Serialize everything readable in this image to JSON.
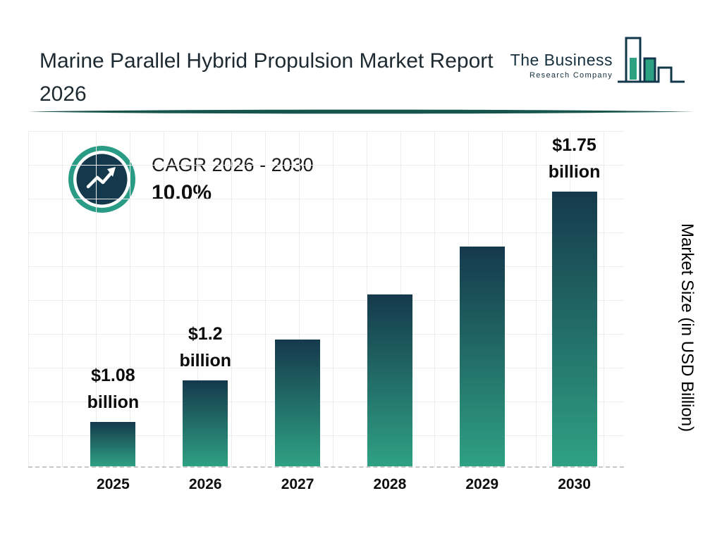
{
  "header": {
    "title": "Marine Parallel Hybrid Propulsion Market Report 2026",
    "logo": {
      "line1": "The Business",
      "line2": "Research Company"
    }
  },
  "cagr": {
    "label": "CAGR 2026 - 2030",
    "value": "10.0%"
  },
  "chart_data": {
    "type": "bar",
    "categories": [
      "2025",
      "2026",
      "2027",
      "2028",
      "2029",
      "2030"
    ],
    "values": [
      1.08,
      1.2,
      1.32,
      1.45,
      1.59,
      1.75
    ],
    "bar_labels": [
      {
        "value": "$1.08",
        "unit": "billion"
      },
      {
        "value": "$1.2",
        "unit": "billion"
      },
      null,
      null,
      null,
      {
        "value": "$1.75",
        "unit": "billion"
      }
    ],
    "title": "",
    "xlabel": "",
    "ylabel": "Market Size (in USD Billion)",
    "ylim": [
      0.95,
      1.75
    ],
    "grid": true,
    "legend": "none",
    "colors": {
      "bar_top": "#15394c",
      "bar_bottom": "#2fa183",
      "accent_teal": "#2a9c85",
      "dark_navy": "#15394c",
      "divider": "#16544c"
    }
  }
}
